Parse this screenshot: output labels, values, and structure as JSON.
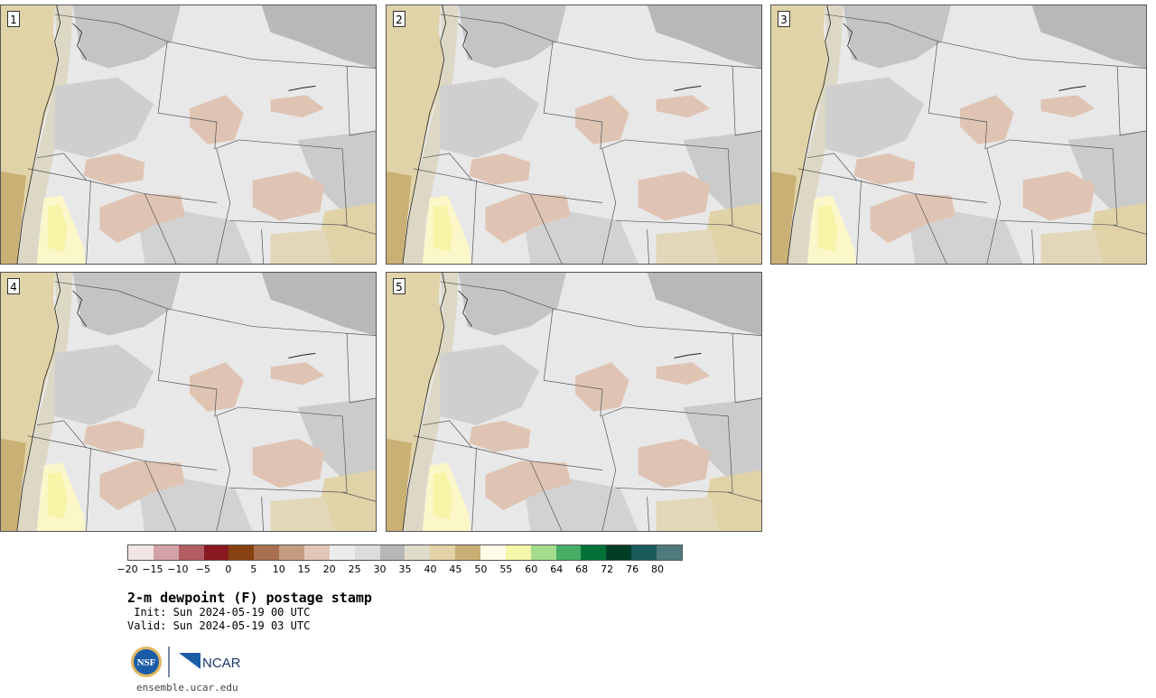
{
  "panels": [
    {
      "label": "1"
    },
    {
      "label": "2"
    },
    {
      "label": "3"
    },
    {
      "label": "4"
    },
    {
      "label": "5"
    }
  ],
  "colorbar": {
    "colors": [
      "#f2e6e4",
      "#d3a2a6",
      "#b25d62",
      "#8a1820",
      "#874010",
      "#a97050",
      "#c49c82",
      "#e2c6b6",
      "#ececec",
      "#dcdcdc",
      "#b6b6b6",
      "#e0dcca",
      "#e2d2a6",
      "#c8b074",
      "#fffce8",
      "#f6f6a8",
      "#a4dc8e",
      "#46ae64",
      "#047238",
      "#003e26",
      "#1a5a5a",
      "#4e7a7c"
    ],
    "tick_labels": [
      "−20",
      "−15",
      "−10",
      "−5",
      "0",
      "5",
      "10",
      "15",
      "20",
      "25",
      "30",
      "35",
      "40",
      "45",
      "50",
      "55",
      "60",
      "64",
      "68",
      "72",
      "76",
      "80"
    ]
  },
  "title": "2-m dewpoint (F) postage stamp",
  "init": " Init: Sun 2024-05-19 00 UTC",
  "valid": "Valid: Sun 2024-05-19 03 UTC",
  "logos": {
    "nsf_text": "NSF",
    "ncar_text": "NCAR"
  },
  "site": "ensemble.ucar.edu"
}
